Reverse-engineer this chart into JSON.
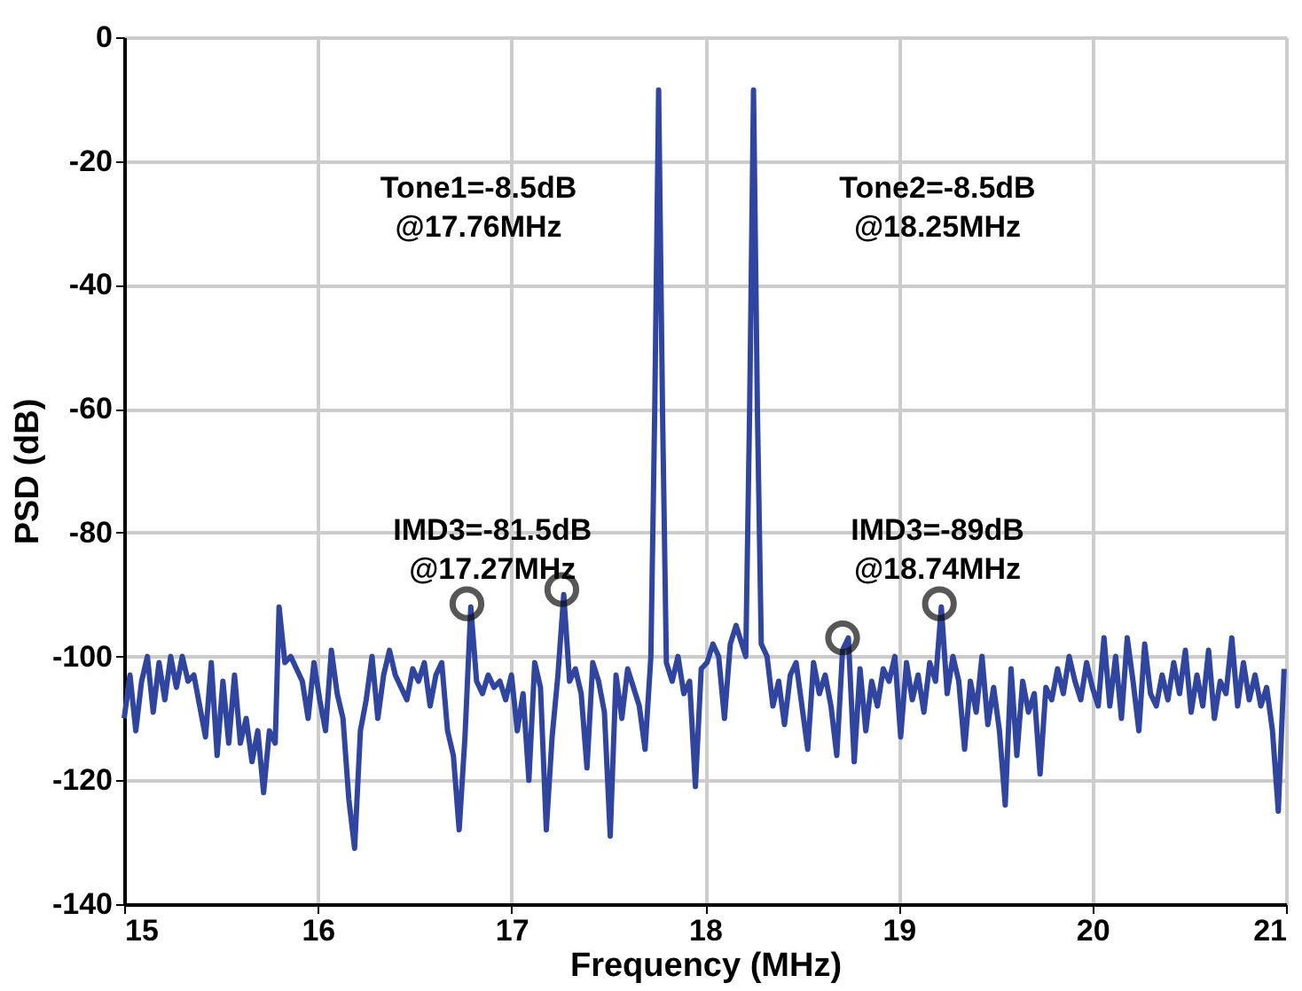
{
  "chart_data": {
    "type": "line",
    "xlabel": "Frequency (MHz)",
    "ylabel": "PSD (dB)",
    "xlim": [
      15,
      21
    ],
    "xticks": [
      15,
      16,
      17,
      18,
      19,
      20,
      21
    ],
    "ylim": [
      -140,
      0
    ],
    "yticks": [
      -140,
      -120,
      -100,
      -80,
      -60,
      -40,
      -20,
      0
    ],
    "grid": true,
    "line_style": "solid",
    "marker": "none",
    "series": [
      {
        "color": "#2f45a0",
        "x": [
          15.0,
          15.03,
          15.06,
          15.09,
          15.12,
          15.15,
          15.18,
          15.21,
          15.24,
          15.27,
          15.3,
          15.33,
          15.36,
          15.39,
          15.42,
          15.45,
          15.48,
          15.51,
          15.54,
          15.57,
          15.6,
          15.63,
          15.66,
          15.69,
          15.72,
          15.75,
          15.78,
          15.8,
          15.83,
          15.86,
          15.89,
          15.92,
          15.95,
          15.98,
          16.01,
          16.04,
          16.07,
          16.1,
          16.13,
          16.16,
          16.19,
          16.22,
          16.25,
          16.28,
          16.31,
          16.34,
          16.37,
          16.4,
          16.43,
          16.46,
          16.49,
          16.52,
          16.55,
          16.58,
          16.61,
          16.64,
          16.67,
          16.7,
          16.73,
          16.76,
          16.79,
          16.82,
          16.85,
          16.88,
          16.91,
          16.94,
          16.97,
          17.0,
          17.03,
          17.06,
          17.09,
          17.12,
          17.15,
          17.18,
          17.21,
          17.24,
          17.27,
          17.3,
          17.33,
          17.36,
          17.39,
          17.42,
          17.45,
          17.48,
          17.51,
          17.54,
          17.57,
          17.6,
          17.63,
          17.66,
          17.69,
          17.72,
          17.74,
          17.76,
          17.78,
          17.8,
          17.83,
          17.86,
          17.89,
          17.92,
          17.95,
          17.98,
          18.01,
          18.04,
          18.07,
          18.1,
          18.13,
          18.16,
          18.19,
          18.21,
          18.23,
          18.25,
          18.27,
          18.29,
          18.32,
          18.35,
          18.38,
          18.41,
          18.44,
          18.47,
          18.5,
          18.53,
          18.56,
          18.59,
          18.62,
          18.65,
          18.68,
          18.71,
          18.74,
          18.77,
          18.8,
          18.83,
          18.86,
          18.89,
          18.92,
          18.95,
          18.98,
          19.01,
          19.04,
          19.07,
          19.1,
          19.13,
          19.16,
          19.19,
          19.22,
          19.25,
          19.28,
          19.31,
          19.34,
          19.37,
          19.4,
          19.43,
          19.46,
          19.49,
          19.52,
          19.55,
          19.58,
          19.61,
          19.64,
          19.67,
          19.7,
          19.73,
          19.76,
          19.79,
          19.82,
          19.85,
          19.88,
          19.91,
          19.94,
          19.97,
          20.0,
          20.03,
          20.06,
          20.09,
          20.12,
          20.15,
          20.18,
          20.21,
          20.24,
          20.27,
          20.3,
          20.33,
          20.36,
          20.39,
          20.42,
          20.45,
          20.48,
          20.51,
          20.54,
          20.57,
          20.6,
          20.63,
          20.66,
          20.69,
          20.72,
          20.75,
          20.78,
          20.81,
          20.84,
          20.87,
          20.9,
          20.93,
          20.96,
          20.99
        ],
        "values": [
          -110,
          -103,
          -112,
          -104,
          -100,
          -109,
          -101,
          -107,
          -100,
          -105,
          -100,
          -104,
          -103,
          -108,
          -113,
          -101,
          -116,
          -104,
          -114,
          -103,
          -114,
          -110,
          -117,
          -112,
          -122,
          -112,
          -114,
          -92,
          -101,
          -100,
          -102,
          -104,
          -110,
          -101,
          -107,
          -112,
          -99,
          -106,
          -110,
          -123,
          -131,
          -112,
          -107,
          -100,
          -110,
          -103,
          -99,
          -103,
          -105,
          -107,
          -102,
          -104,
          -101,
          -108,
          -103,
          -101,
          -112,
          -116,
          -128,
          -113,
          -92,
          -104,
          -106,
          -103,
          -105,
          -104,
          -107,
          -103,
          -112,
          -106,
          -120,
          -101,
          -105,
          -128,
          -113,
          -103,
          -90,
          -104,
          -102,
          -106,
          -118,
          -101,
          -104,
          -109,
          -129,
          -103,
          -110,
          -102,
          -105,
          -108,
          -115,
          -100,
          -60,
          -8.5,
          -60,
          -101,
          -104,
          -100,
          -106,
          -104,
          -121,
          -102,
          -101,
          -98,
          -100,
          -110,
          -98,
          -95,
          -98,
          -100,
          -60,
          -8.5,
          -60,
          -98,
          -100,
          -108,
          -104,
          -111,
          -103,
          -101,
          -108,
          -115,
          -101,
          -106,
          -103,
          -108,
          -116,
          -99,
          -97,
          -117,
          -102,
          -112,
          -104,
          -108,
          -102,
          -104,
          -100,
          -113,
          -101,
          -107,
          -103,
          -109,
          -101,
          -104,
          -92,
          -106,
          -100,
          -104,
          -115,
          -104,
          -109,
          -100,
          -111,
          -105,
          -112,
          -124,
          -102,
          -116,
          -104,
          -109,
          -106,
          -119,
          -105,
          -107,
          -102,
          -106,
          -100,
          -104,
          -107,
          -101,
          -105,
          -108,
          -97,
          -108,
          -100,
          -110,
          -97,
          -104,
          -112,
          -98,
          -106,
          -108,
          -103,
          -107,
          -101,
          -106,
          -99,
          -109,
          -103,
          -108,
          -99,
          -110,
          -104,
          -106,
          -97,
          -108,
          -101,
          -107,
          -103,
          -108,
          -105,
          -112,
          -125,
          -102
        ]
      },
      {
        "type": "scatter",
        "color": "#111111",
        "marker": "circle",
        "x": [
          16.77,
          17.26,
          18.71,
          19.21
        ],
        "values": [
          -91.5,
          -89.2,
          -97,
          -91.5
        ]
      }
    ],
    "annotations": [
      "Tone1=-8.5dB\n@17.76MHz",
      "Tone2=-8.5dB\n@18.25MHz",
      "IMD3=-81.5dB\n@17.27MHz",
      "IMD3=-89dB\n@18.74MHz"
    ]
  }
}
